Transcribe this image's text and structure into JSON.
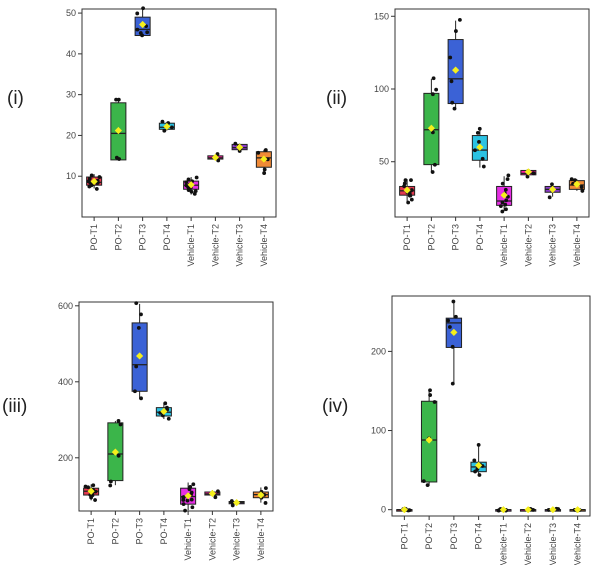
{
  "figure": {
    "categories": [
      "PO-T1",
      "PO-T2",
      "PO-T3",
      "PO-T4",
      "Vehicle-T1",
      "Vehicle-T2",
      "Vehicle-T3",
      "Vehicle-T4"
    ],
    "colors": [
      "#e2384f",
      "#3bb54a",
      "#3b62d6",
      "#2bc2e3",
      "#e52ee3",
      "#ff1aa0",
      "#8b3bc7",
      "#f08a36"
    ],
    "mean_marker_color": "#f5ef1c",
    "point_color": "#111111"
  },
  "chart_data": [
    {
      "type": "box",
      "panel_label": "(i)",
      "title": "",
      "xlabel": "",
      "ylabel": "",
      "ylim": [
        0,
        51
      ],
      "yticks": [
        10,
        20,
        30,
        40,
        50
      ],
      "categories": [
        "PO-T1",
        "PO-T2",
        "PO-T3",
        "PO-T4",
        "Vehicle-T1",
        "Vehicle-T2",
        "Vehicle-T3",
        "Vehicle-T4"
      ],
      "series": [
        {
          "name": "PO-T1",
          "q1": 7.8,
          "median": 8.5,
          "q3": 9.8,
          "whisker_low": 7,
          "whisker_high": 10.5,
          "mean": 8.7,
          "points": [
            7,
            7.5,
            8,
            8.3,
            8.6,
            9,
            9.4,
            9.8,
            10.2,
            8.1,
            8.8,
            7.8
          ]
        },
        {
          "name": "PO-T2",
          "q1": 14,
          "median": 20.5,
          "q3": 28,
          "whisker_low": 14,
          "whisker_high": 29,
          "mean": 21.2,
          "points": [
            14,
            14.5,
            28.7,
            29
          ]
        },
        {
          "name": "PO-T3",
          "q1": 44.5,
          "median": 46,
          "q3": 49,
          "whisker_low": 44.5,
          "whisker_high": 51,
          "mean": 47.2,
          "points": [
            44.5,
            45,
            45.5,
            46,
            47,
            50,
            51
          ]
        },
        {
          "name": "PO-T4",
          "q1": 21.5,
          "median": 22,
          "q3": 23,
          "whisker_low": 21.2,
          "whisker_high": 23.3,
          "mean": 22.2,
          "points": [
            21.3,
            22,
            22.8,
            23.2
          ]
        },
        {
          "name": "Vehicle-T1",
          "q1": 6.8,
          "median": 7.8,
          "q3": 8.8,
          "whisker_low": 5.5,
          "whisker_high": 9.8,
          "mean": 7.9,
          "points": [
            5.5,
            6,
            6.5,
            7,
            7.4,
            7.8,
            8.2,
            8.6,
            9,
            9.4,
            9.7,
            6.8,
            7.2
          ]
        },
        {
          "name": "Vehicle-T2",
          "q1": 14.2,
          "median": 14.5,
          "q3": 15,
          "whisker_low": 14,
          "whisker_high": 15.3,
          "mean": 14.6,
          "points": [
            14,
            14.5,
            15.2
          ]
        },
        {
          "name": "Vehicle-T3",
          "q1": 16.5,
          "median": 17,
          "q3": 17.8,
          "whisker_low": 16,
          "whisker_high": 18,
          "mean": 17.1,
          "points": [
            16,
            17,
            18,
            17.5
          ]
        },
        {
          "name": "Vehicle-T4",
          "q1": 12.2,
          "median": 14.5,
          "q3": 16,
          "whisker_low": 11,
          "whisker_high": 16.5,
          "mean": 14.2,
          "points": [
            11,
            11.5,
            14,
            15.5,
            16.2
          ]
        }
      ]
    },
    {
      "type": "box",
      "panel_label": "(ii)",
      "title": "",
      "xlabel": "",
      "ylabel": "",
      "ylim": [
        12,
        155
      ],
      "yticks": [
        50,
        100,
        150
      ],
      "categories": [
        "PO-T1",
        "PO-T2",
        "PO-T3",
        "PO-T4",
        "Vehicle-T1",
        "Vehicle-T2",
        "Vehicle-T3",
        "Vehicle-T4"
      ],
      "series": [
        {
          "name": "PO-T1",
          "q1": 27,
          "median": 30,
          "q3": 33,
          "whisker_low": 22,
          "whisker_high": 38,
          "mean": 30.5,
          "points": [
            22,
            24,
            26,
            28,
            29,
            30,
            31,
            33,
            35,
            37,
            38,
            27
          ]
        },
        {
          "name": "PO-T2",
          "q1": 48,
          "median": 72,
          "q3": 97,
          "whisker_low": 43,
          "whisker_high": 107,
          "mean": 73,
          "points": [
            43,
            48,
            70,
            97,
            100,
            107
          ]
        },
        {
          "name": "PO-T3",
          "q1": 90,
          "median": 107,
          "q3": 134,
          "whisker_low": 87,
          "whisker_high": 147,
          "mean": 113,
          "points": [
            87,
            90,
            105,
            122,
            140,
            147
          ]
        },
        {
          "name": "PO-T4",
          "q1": 51,
          "median": 58,
          "q3": 68,
          "whisker_low": 46,
          "whisker_high": 72,
          "mean": 60,
          "points": [
            46,
            52,
            58,
            64,
            70,
            72
          ]
        },
        {
          "name": "Vehicle-T1",
          "q1": 20,
          "median": 23,
          "q3": 33,
          "whisker_low": 16,
          "whisker_high": 40,
          "mean": 27,
          "points": [
            16,
            18,
            20,
            22,
            24,
            26,
            28,
            31,
            35,
            38,
            40,
            21
          ]
        },
        {
          "name": "Vehicle-T2",
          "q1": 41,
          "median": 42,
          "q3": 44,
          "whisker_low": 40,
          "whisker_high": 45,
          "mean": 43,
          "points": [
            40,
            42,
            44
          ]
        },
        {
          "name": "Vehicle-T3",
          "q1": 29,
          "median": 31,
          "q3": 33,
          "whisker_low": 26,
          "whisker_high": 34,
          "mean": 31,
          "points": [
            26,
            31,
            34
          ]
        },
        {
          "name": "Vehicle-T4",
          "q1": 31,
          "median": 34,
          "q3": 37,
          "whisker_low": 30,
          "whisker_high": 38,
          "mean": 34.5,
          "points": [
            30,
            32,
            35,
            37,
            38
          ]
        }
      ]
    },
    {
      "type": "box",
      "panel_label": "(iii)",
      "title": "",
      "xlabel": "",
      "ylabel": "",
      "ylim": [
        60,
        610
      ],
      "yticks": [
        200,
        400,
        600
      ],
      "categories": [
        "PO-T1",
        "PO-T2",
        "PO-T3",
        "PO-T4",
        "Vehicle-T1",
        "Vehicle-T2",
        "Vehicle-T3",
        "Vehicle-T4"
      ],
      "series": [
        {
          "name": "PO-T1",
          "q1": 102,
          "median": 112,
          "q3": 120,
          "whisker_low": 88,
          "whisker_high": 130,
          "mean": 112,
          "points": [
            88,
            95,
            100,
            105,
            110,
            113,
            117,
            120,
            125,
            130,
            108
          ]
        },
        {
          "name": "PO-T2",
          "q1": 140,
          "median": 210,
          "q3": 292,
          "whisker_low": 128,
          "whisker_high": 297,
          "mean": 215,
          "points": [
            128,
            140,
            205,
            290,
            297
          ]
        },
        {
          "name": "PO-T3",
          "q1": 375,
          "median": 445,
          "q3": 555,
          "whisker_low": 355,
          "whisker_high": 605,
          "mean": 468,
          "points": [
            355,
            375,
            440,
            540,
            575,
            605
          ]
        },
        {
          "name": "PO-T4",
          "q1": 310,
          "median": 320,
          "q3": 332,
          "whisker_low": 302,
          "whisker_high": 345,
          "mean": 322,
          "points": [
            302,
            310,
            318,
            326,
            334,
            345
          ]
        },
        {
          "name": "Vehicle-T1",
          "q1": 78,
          "median": 98,
          "q3": 120,
          "whisker_low": 62,
          "whisker_high": 135,
          "mean": 100,
          "points": [
            62,
            70,
            78,
            85,
            92,
            98,
            104,
            110,
            118,
            125,
            132,
            88,
            95
          ]
        },
        {
          "name": "Vehicle-T2",
          "q1": 102,
          "median": 105,
          "q3": 110,
          "whisker_low": 98,
          "whisker_high": 115,
          "mean": 106,
          "points": [
            98,
            106,
            114
          ]
        },
        {
          "name": "Vehicle-T3",
          "q1": 79,
          "median": 82,
          "q3": 85,
          "whisker_low": 75,
          "whisker_high": 88,
          "mean": 82,
          "points": [
            75,
            82,
            88
          ]
        },
        {
          "name": "Vehicle-T4",
          "q1": 95,
          "median": 103,
          "q3": 110,
          "whisker_low": 82,
          "whisker_high": 122,
          "mean": 102,
          "points": [
            82,
            95,
            105,
            112,
            122
          ]
        }
      ]
    },
    {
      "type": "box",
      "panel_label": "(iv)",
      "title": "",
      "xlabel": "",
      "ylabel": "",
      "ylim": [
        -8,
        270
      ],
      "yticks": [
        0,
        100,
        200
      ],
      "categories": [
        "PO-T1",
        "PO-T2",
        "PO-T3",
        "PO-T4",
        "Vehicle-T1",
        "Vehicle-T2",
        "Vehicle-T3",
        "Vehicle-T4"
      ],
      "series": [
        {
          "name": "PO-T1",
          "q1": 0,
          "median": 0,
          "q3": 0,
          "whisker_low": 0,
          "whisker_high": 0,
          "mean": 0,
          "points": [
            0,
            0,
            0,
            0,
            0,
            0
          ]
        },
        {
          "name": "PO-T2",
          "q1": 35,
          "median": 88,
          "q3": 137,
          "whisker_low": 30,
          "whisker_high": 150,
          "mean": 88,
          "points": [
            30,
            35,
            90,
            137,
            145,
            150
          ]
        },
        {
          "name": "PO-T3",
          "q1": 205,
          "median": 236,
          "q3": 242,
          "whisker_low": 160,
          "whisker_high": 262,
          "mean": 224,
          "points": [
            160,
            205,
            230,
            238,
            245,
            262
          ]
        },
        {
          "name": "PO-T4",
          "q1": 48,
          "median": 54,
          "q3": 60,
          "whisker_low": 45,
          "whisker_high": 82,
          "mean": 56,
          "points": [
            45,
            48,
            52,
            55,
            58,
            62,
            82
          ]
        },
        {
          "name": "Vehicle-T1",
          "q1": 0,
          "median": 0,
          "q3": 0,
          "whisker_low": 0,
          "whisker_high": 0,
          "mean": 0,
          "points": [
            0,
            0,
            0,
            0,
            0,
            0,
            0,
            0
          ]
        },
        {
          "name": "Vehicle-T2",
          "q1": 0,
          "median": 0,
          "q3": 0,
          "whisker_low": 0,
          "whisker_high": 0,
          "mean": 0,
          "points": [
            0,
            0,
            0
          ]
        },
        {
          "name": "Vehicle-T3",
          "q1": 0,
          "median": 0,
          "q3": 0,
          "whisker_low": 0,
          "whisker_high": 0,
          "mean": 0,
          "points": [
            0,
            0,
            0
          ]
        },
        {
          "name": "Vehicle-T4",
          "q1": 0,
          "median": 0,
          "q3": 0,
          "whisker_low": 0,
          "whisker_high": 0,
          "mean": 0,
          "points": [
            0,
            0,
            0,
            0
          ]
        }
      ]
    }
  ]
}
